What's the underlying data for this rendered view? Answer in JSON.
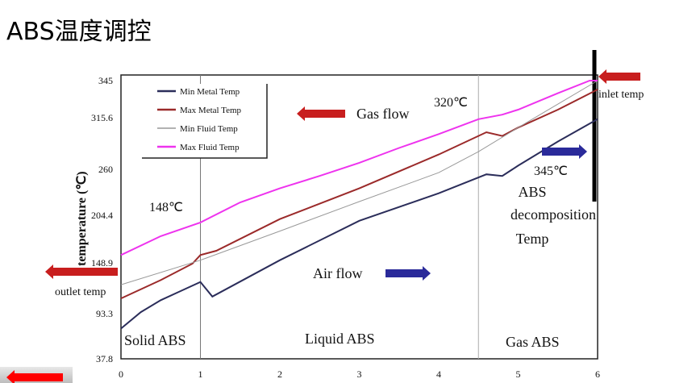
{
  "title": "ABS温度调控",
  "chart_data": {
    "type": "line",
    "ylabel": "temperature (℃)",
    "xlim": [
      0,
      6
    ],
    "ylim": [
      37.8,
      345
    ],
    "xticks": [
      "0",
      "1",
      "2",
      "3",
      "4",
      "5",
      "6"
    ],
    "yticks": [
      "345",
      "315.6",
      "260",
      "204.4",
      "148.9",
      "93.3",
      "37.8"
    ],
    "legend_position": "top-left",
    "series": [
      {
        "name": "Min Metal Temp",
        "color": "#2b2d5a",
        "x": [
          0,
          0.25,
          0.5,
          0.75,
          1,
          1.15,
          2,
          3,
          4,
          4.6,
          4.8,
          5,
          5.5,
          6
        ],
        "y": [
          75,
          95,
          108,
          118,
          128,
          112,
          152,
          198,
          231,
          254,
          252,
          264,
          290,
          314
        ]
      },
      {
        "name": "Max Metal Temp",
        "color": "#9b2a2a",
        "x": [
          0,
          0.5,
          0.9,
          1,
          1.2,
          2,
          3,
          4,
          4.6,
          4.8,
          5,
          5.5,
          6
        ],
        "y": [
          110,
          130,
          148,
          158,
          163,
          200,
          237,
          276,
          300,
          296,
          305,
          322,
          338
        ]
      },
      {
        "name": "Min Fluid Temp",
        "color": "#999999",
        "x": [
          0,
          1,
          2,
          3,
          4,
          4.5,
          5,
          6
        ],
        "y": [
          125,
          152,
          186,
          221,
          256,
          279,
          305,
          345
        ]
      },
      {
        "name": "Max Fluid Temp",
        "color": "#ee33ee",
        "x": [
          0,
          0.5,
          1,
          1.5,
          2,
          2.5,
          3,
          3.5,
          4,
          4.5,
          4.8,
          5,
          5.5,
          5.9,
          6
        ],
        "y": [
          158,
          180,
          196,
          220,
          237,
          252,
          267,
          283,
          298,
          314,
          318,
          322,
          335,
          345,
          345
        ]
      }
    ],
    "annotations": [
      "148℃",
      "320℃",
      "345℃",
      "Gas flow",
      "Air flow",
      "inlet temp",
      "outlet temp",
      "ABS",
      "decomposition",
      "Temp",
      "Solid ABS",
      "Liquid ABS",
      "Gas ABS"
    ]
  }
}
